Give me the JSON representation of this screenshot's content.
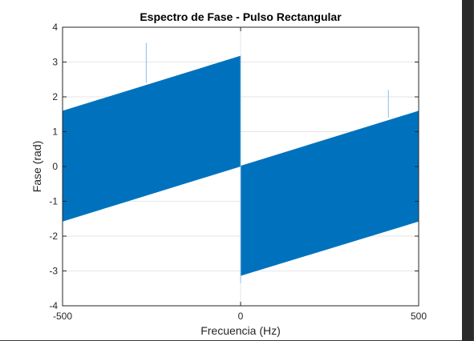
{
  "chart_data": {
    "type": "area",
    "title": "Espectro de Fase - Pulso Rectangular",
    "xlabel": "Frecuencia (Hz)",
    "ylabel": "Fase (rad)",
    "xlim": [
      -500,
      500
    ],
    "ylim": [
      -4,
      4
    ],
    "xticks": [
      -500,
      0,
      500
    ],
    "yticks": [
      4,
      3,
      2,
      1,
      0,
      -1,
      -2,
      -3,
      -4
    ],
    "grid": true,
    "series_color": "#0072BD",
    "series": [
      {
        "x": [
          -500,
          0
        ],
        "upper": [
          1.6,
          3.18
        ],
        "lower": [
          -1.58,
          0.0
        ]
      },
      {
        "x": [
          0,
          500
        ],
        "upper": [
          0.02,
          1.6
        ],
        "lower": [
          -3.14,
          -1.58
        ]
      }
    ],
    "spikes": [
      {
        "x": -265,
        "y_from": 2.4,
        "y_to": 3.55
      },
      {
        "x": 415,
        "y_from": 1.4,
        "y_to": 2.2
      },
      {
        "x": 0,
        "y_from": -3.35,
        "y_to": 3.18
      }
    ]
  }
}
